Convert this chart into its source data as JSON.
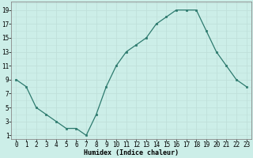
{
  "x": [
    0,
    1,
    2,
    3,
    4,
    5,
    6,
    7,
    8,
    9,
    10,
    11,
    12,
    13,
    14,
    15,
    16,
    17,
    18,
    19,
    20,
    21,
    22,
    23
  ],
  "y": [
    9,
    8,
    5,
    4,
    3,
    2,
    2,
    1,
    4,
    8,
    11,
    13,
    14,
    15,
    17,
    18,
    19,
    19,
    19,
    16,
    13,
    11,
    9,
    8
  ],
  "line_color": "#2d7a6e",
  "marker_color": "#2d7a6e",
  "bg_color": "#cceee8",
  "grid_color": "#c0e0da",
  "xlabel": "Humidex (Indice chaleur)",
  "xlabel_fontsize": 6,
  "xtick_labels": [
    "0",
    "1",
    "2",
    "3",
    "4",
    "5",
    "6",
    "7",
    "8",
    "9",
    "10",
    "11",
    "12",
    "13",
    "14",
    "15",
    "16",
    "17",
    "18",
    "19",
    "20",
    "21",
    "22",
    "23"
  ],
  "ytick_labels": [
    "1",
    "3",
    "5",
    "7",
    "9",
    "11",
    "13",
    "15",
    "17",
    "19"
  ],
  "ytick_values": [
    1,
    3,
    5,
    7,
    9,
    11,
    13,
    15,
    17,
    19
  ],
  "xlim": [
    -0.5,
    23.5
  ],
  "ylim": [
    0.5,
    20.2
  ],
  "tick_fontsize": 5.5
}
